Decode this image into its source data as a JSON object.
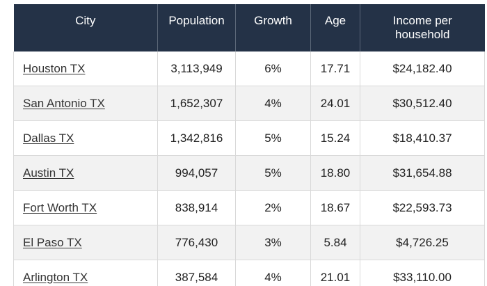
{
  "table": {
    "headers": [
      "City",
      "Population",
      "Growth",
      "Age",
      "Income per household"
    ],
    "rows": [
      {
        "city": "Houston TX",
        "population": "3,113,949",
        "growth": "6%",
        "age": "17.71",
        "income": "$24,182.40"
      },
      {
        "city": "San Antonio TX",
        "population": "1,652,307",
        "growth": "4%",
        "age": "24.01",
        "income": "$30,512.40"
      },
      {
        "city": "Dallas TX",
        "population": "1,342,816",
        "growth": "5%",
        "age": "15.24",
        "income": "$18,410.37"
      },
      {
        "city": "Austin TX",
        "population": "994,057",
        "growth": "5%",
        "age": "18.80",
        "income": "$31,654.88"
      },
      {
        "city": "Fort Worth TX",
        "population": "838,914",
        "growth": "2%",
        "age": "18.67",
        "income": "$22,593.73"
      },
      {
        "city": "El Paso TX",
        "population": "776,430",
        "growth": "3%",
        "age": "5.84",
        "income": "$4,726.25"
      },
      {
        "city": "Arlington TX",
        "population": "387,584",
        "growth": "4%",
        "age": "21.01",
        "income": "$33,110.00"
      }
    ]
  },
  "colors": {
    "header_bg": "#243247",
    "header_text": "#ffffff",
    "row_alt_bg": "#f2f2f2",
    "border": "#d9d9d9"
  }
}
